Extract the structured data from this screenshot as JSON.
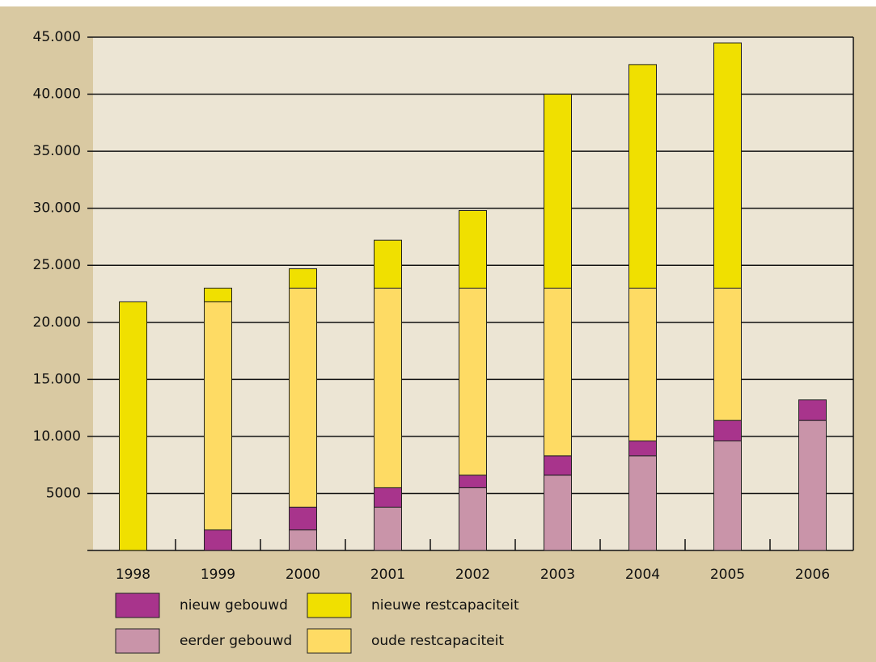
{
  "chart_data": {
    "type": "stacked-bar",
    "categories": [
      "1998",
      "1999",
      "2000",
      "2001",
      "2002",
      "2003",
      "2004",
      "2005",
      "2006"
    ],
    "series": [
      {
        "name": "eerder gebouwd",
        "color": "#c994a9",
        "values": [
          null,
          null,
          1800,
          3800,
          5500,
          6600,
          8300,
          9600,
          11400
        ]
      },
      {
        "name": "nieuw gebouwd",
        "color": "#a8348c",
        "values": [
          null,
          1800,
          2000,
          1700,
          1100,
          1700,
          1300,
          1800,
          1800
        ]
      },
      {
        "name": "oude restcapaciteit",
        "color": "#fedb64",
        "values": [
          null,
          20000,
          19200,
          17500,
          16400,
          14700,
          13400,
          11600,
          null
        ]
      },
      {
        "name": "nieuwe restcapaciteit",
        "color": "#f0e000",
        "values": [
          21800,
          1200,
          1700,
          4200,
          6800,
          17000,
          19600,
          21500,
          null
        ]
      }
    ],
    "ylim": [
      0,
      45000
    ],
    "yticks": [
      5000,
      {
        "value": 10000,
        "label": "10.000"
      },
      {
        "value": 15000,
        "label": "15.000"
      },
      {
        "value": 20000,
        "label": "20.000"
      },
      {
        "value": 25000,
        "label": "25.000"
      },
      {
        "value": 30000,
        "label": "30.000"
      },
      {
        "value": 35000,
        "label": "35.000"
      },
      {
        "value": 40000,
        "label": "40.000"
      },
      {
        "value": 45000,
        "label": "45.000"
      }
    ],
    "grid": true
  }
}
